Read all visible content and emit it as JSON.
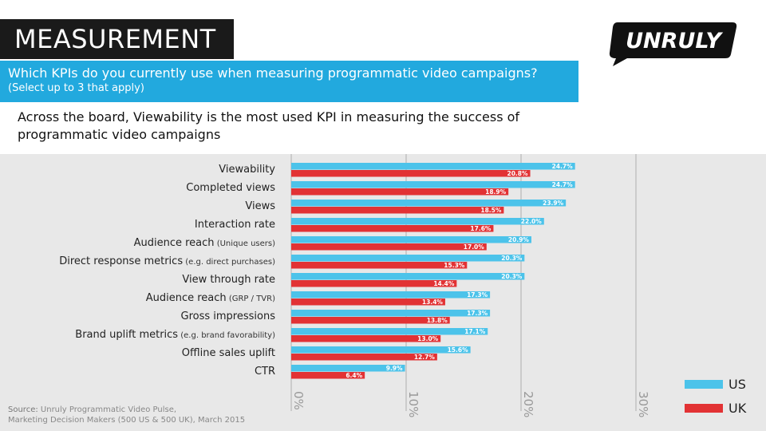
{
  "header": {
    "title": "MEASUREMENT",
    "question": "Which KPIs do you currently use when measuring programmatic video campaigns?",
    "question_note": "(Select up to 3 that apply)",
    "insight": "Across the board, Viewability is the most used KPI in measuring the success of programmatic video campaigns",
    "logo_text": "UNRULY"
  },
  "source": {
    "label": "Source:",
    "text": "Unruly Programmatic Video Pulse,",
    "text2": "Marketing Decision Makers (500 US & 500 UK), March 2015"
  },
  "chart_data": {
    "type": "bar",
    "orientation": "horizontal",
    "categories": [
      {
        "name": "Viewability",
        "note": ""
      },
      {
        "name": "Completed views",
        "note": ""
      },
      {
        "name": "Views",
        "note": ""
      },
      {
        "name": "Interaction rate",
        "note": ""
      },
      {
        "name": "Audience reach",
        "note": "(Unique users)"
      },
      {
        "name": "Direct response metrics",
        "note": "(e.g. direct purchases)"
      },
      {
        "name": "View through rate",
        "note": ""
      },
      {
        "name": "Audience reach",
        "note": "(GRP / TVR)"
      },
      {
        "name": "Gross impressions",
        "note": ""
      },
      {
        "name": "Brand uplift metrics",
        "note": "(e.g. brand favorability)"
      },
      {
        "name": "Offline sales uplift",
        "note": ""
      },
      {
        "name": "CTR",
        "note": ""
      }
    ],
    "series": [
      {
        "name": "US",
        "color": "#4cc3ea",
        "values": [
          24.7,
          24.7,
          23.9,
          22.0,
          20.9,
          20.3,
          20.3,
          17.3,
          17.3,
          17.1,
          15.6,
          9.9
        ]
      },
      {
        "name": "UK",
        "color": "#e23234",
        "values": [
          20.8,
          18.9,
          18.5,
          17.6,
          17.0,
          15.3,
          14.4,
          13.4,
          13.8,
          13.0,
          12.7,
          6.4
        ]
      }
    ],
    "xlim": [
      0,
      30
    ],
    "ticks": [
      "0%",
      "10%",
      "20%",
      "30%"
    ],
    "grid": true,
    "legend": "bottom-right",
    "value_suffix": "%"
  }
}
